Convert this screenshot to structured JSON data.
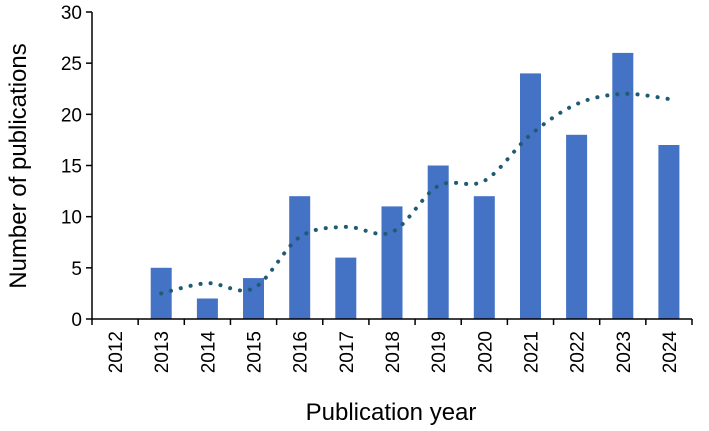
{
  "chart_data": {
    "type": "bar",
    "xlabel": "Publication year",
    "ylabel": "Number of publications",
    "categories": [
      "2012",
      "2013",
      "2014",
      "2015",
      "2016",
      "2017",
      "2018",
      "2019",
      "2020",
      "2021",
      "2022",
      "2023",
      "2024"
    ],
    "series": [
      {
        "values": [
          0,
          5,
          2,
          4,
          12,
          6,
          11,
          15,
          12,
          24,
          18,
          26,
          17
        ],
        "color": "#4472C4"
      }
    ],
    "trendline": {
      "style": "dotted",
      "color": "#1F5C73",
      "values": [
        null,
        2.5,
        3.5,
        3.0,
        8.0,
        9.0,
        8.5,
        13.0,
        13.5,
        18.0,
        21.0,
        22.0,
        21.5
      ]
    },
    "ylim": [
      0,
      30
    ],
    "yticks": [
      "0",
      "5",
      "10",
      "15",
      "20",
      "25",
      "30"
    ],
    "grid": false,
    "legend": "none"
  }
}
